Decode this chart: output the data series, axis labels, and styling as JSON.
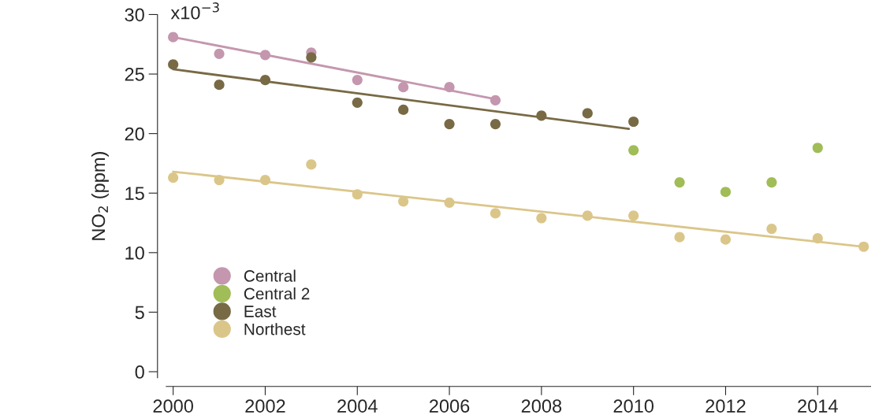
{
  "chart_data": {
    "type": "scatter",
    "ylabel": "NO$_{2}$ (ppm)",
    "annotations": [
      "x10$^{−3}$"
    ],
    "xlim": [
      1999.85,
      2015.15
    ],
    "xticks": [
      2000,
      2002,
      2004,
      2006,
      2008,
      2010,
      2012,
      2014
    ],
    "ylim": [
      -0.5,
      30
    ],
    "yticks": [
      0,
      5,
      10,
      15,
      20,
      25,
      30
    ],
    "grid": false,
    "legend": "bottom left",
    "marker": "circle",
    "series": [
      {
        "name": "Central",
        "color": "#c497ae",
        "x": [
          2000,
          2001,
          2002,
          2003,
          2004,
          2005,
          2006,
          2007
        ],
        "values": [
          28.1,
          26.7,
          26.6,
          26.8,
          24.5,
          23.9,
          23.9,
          22.8
        ]
      },
      {
        "name": "Central 2",
        "color": "#a0bd57",
        "x": [
          2010,
          2011,
          2012,
          2013,
          2014
        ],
        "values": [
          18.6,
          15.9,
          15.1,
          15.9,
          18.8
        ]
      },
      {
        "name": "East",
        "color": "#786a45",
        "x": [
          2000,
          2001,
          2002,
          2003,
          2004,
          2005,
          2006,
          2007,
          2008,
          2009,
          2010
        ],
        "values": [
          25.8,
          24.1,
          24.5,
          26.4,
          22.6,
          22.0,
          20.8,
          20.8,
          21.5,
          21.7,
          21.0
        ]
      },
      {
        "name": "Northest",
        "color": "#dbc68a",
        "x": [
          2000,
          2001,
          2002,
          2003,
          2004,
          2005,
          2006,
          2007,
          2008,
          2009,
          2010,
          2011,
          2012,
          2013,
          2014,
          2015
        ],
        "values": [
          16.3,
          16.1,
          16.1,
          17.4,
          14.9,
          14.3,
          14.2,
          13.3,
          12.9,
          13.1,
          13.1,
          11.3,
          11.1,
          12.0,
          11.2,
          10.5
        ]
      },
      {
        "type": "line",
        "marker": "none",
        "color": "#c497ae",
        "x": [
          2000,
          2007
        ],
        "values": [
          28.1,
          22.9
        ]
      },
      {
        "type": "line",
        "marker": "none",
        "color": "#786a45",
        "x": [
          2000,
          2009.9
        ],
        "values": [
          25.4,
          20.4
        ]
      },
      {
        "type": "line",
        "marker": "none",
        "color": "#dbc68a",
        "x": [
          2000,
          2015
        ],
        "values": [
          16.8,
          10.5
        ]
      }
    ]
  }
}
